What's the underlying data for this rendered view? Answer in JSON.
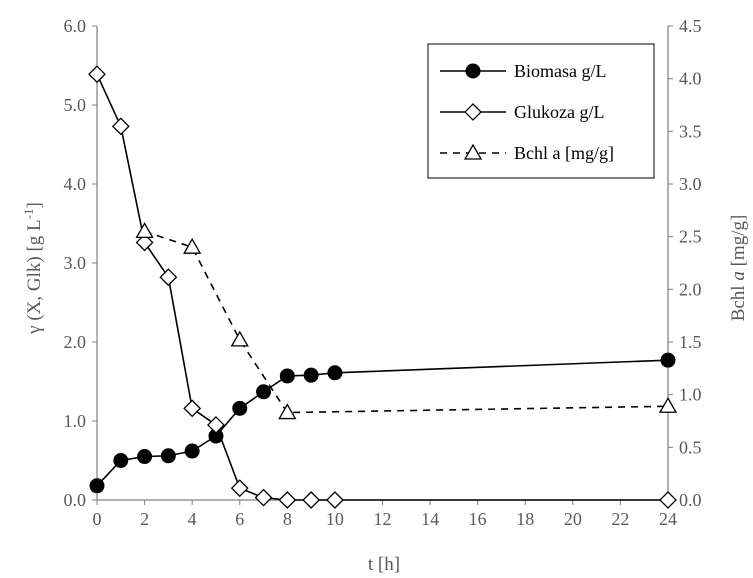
{
  "chart_data": {
    "type": "line",
    "xlabel": "t [h]",
    "ylabel_left": {
      "prefix": "γ (X, Glk) [g L",
      "superscript": "-1",
      "suffix": "]"
    },
    "ylabel_right": {
      "prefix": "Bchl ",
      "italic": "a",
      "suffix": " [mg/g]"
    },
    "xlim": [
      0,
      24
    ],
    "x_ticks": [
      0,
      2,
      4,
      6,
      8,
      10,
      12,
      14,
      16,
      18,
      20,
      22,
      24
    ],
    "ylim_left": [
      0,
      6
    ],
    "y_ticks_left": [
      "0.0",
      "1.0",
      "2.0",
      "3.0",
      "4.0",
      "5.0",
      "6.0"
    ],
    "ylim_right": [
      0,
      4.5
    ],
    "y_ticks_right": [
      "0.0",
      "0.5",
      "1.0",
      "1.5",
      "2.0",
      "2.5",
      "3.0",
      "3.5",
      "4.0",
      "4.5"
    ],
    "grid": false,
    "legend_position": "top-right",
    "series": [
      {
        "name": "Biomasa g/L",
        "axis": "left",
        "marker": "circle-filled",
        "line": "solid",
        "color": "#000000",
        "x": [
          0,
          1,
          2,
          3,
          4,
          5,
          6,
          7,
          8,
          9,
          10,
          24
        ],
        "y": [
          0.18,
          0.5,
          0.55,
          0.56,
          0.62,
          0.81,
          1.16,
          1.37,
          1.57,
          1.58,
          1.61,
          1.77
        ]
      },
      {
        "name": "Glukoza g/L",
        "axis": "left",
        "marker": "diamond-open",
        "line": "solid",
        "color": "#000000",
        "x": [
          0,
          1,
          2,
          3,
          4,
          5,
          6,
          7,
          8,
          9,
          10,
          24
        ],
        "y": [
          5.39,
          4.73,
          3.26,
          2.82,
          1.16,
          0.95,
          0.15,
          0.03,
          0.0,
          0.0,
          0.0,
          0.0
        ]
      },
      {
        "name": "Bchl a [mg/g]",
        "axis": "right",
        "marker": "triangle-open",
        "line": "dashed",
        "color": "#000000",
        "x": [
          2,
          4,
          6,
          8,
          24
        ],
        "y": [
          2.55,
          2.4,
          1.52,
          0.83,
          0.89
        ]
      }
    ]
  }
}
